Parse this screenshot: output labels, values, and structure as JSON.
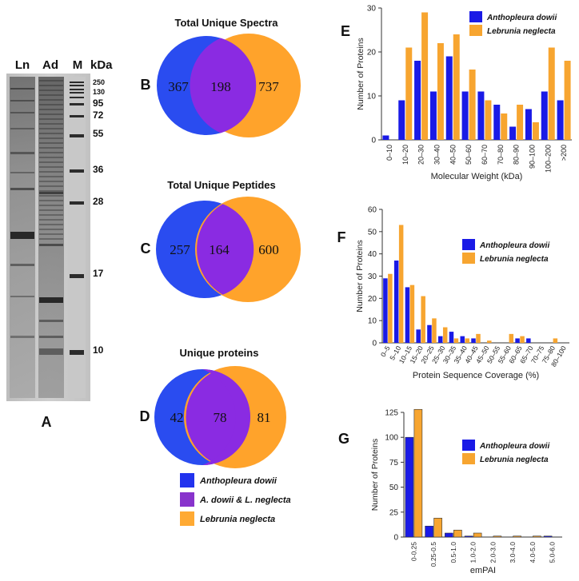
{
  "panels": {
    "A": "A",
    "B": "B",
    "C": "C",
    "D": "D",
    "E": "E",
    "F": "F",
    "G": "G"
  },
  "gel": {
    "lanes": [
      "Ln",
      "Ad",
      "M"
    ],
    "unit": "kDa",
    "markers": [
      "250",
      "130",
      "95",
      "72",
      "55",
      "36",
      "28",
      "17",
      "10"
    ]
  },
  "venns": [
    {
      "title": "Total Unique Spectra",
      "left": "367",
      "overlap": "198",
      "right": "737"
    },
    {
      "title": "Total Unique Peptides",
      "left": "257",
      "overlap": "164",
      "right": "600"
    },
    {
      "title": "Unique proteins",
      "left": "42",
      "overlap": "78",
      "right": "81"
    }
  ],
  "venn_legend": [
    {
      "label": "Anthopleura dowii",
      "color": "#2233ee"
    },
    {
      "label": "A. dowii & L. neglecta",
      "color": "#8833cc"
    },
    {
      "label": "Lebrunia neglecta",
      "color": "#ffaa33"
    }
  ],
  "colors": {
    "ad": "#1a1ae6",
    "ln": "#f7a530",
    "venn_blue": "#2a4cf0",
    "venn_orange": "#ffa32b",
    "venn_overlap": "#8a2be2"
  },
  "chart_data": [
    {
      "type": "bar",
      "ylabel": "Number of Proteins",
      "xlabel": "Molecular Weight (kDa)",
      "ylim": [
        0,
        30
      ],
      "yticks": [
        "0",
        "10",
        "20",
        "30"
      ],
      "categories": [
        "0–10",
        "10–20",
        "20–30",
        "30–40",
        "40–50",
        "50–60",
        "60–70",
        "70–80",
        "80–90",
        "90–100",
        "100–200",
        ">200"
      ],
      "series": [
        {
          "name": "Anthopleura dowii",
          "values": [
            1,
            9,
            18,
            11,
            19,
            11,
            11,
            8,
            3,
            7,
            11,
            9
          ]
        },
        {
          "name": "Lebrunia neglecta",
          "values": [
            0,
            21,
            29,
            22,
            24,
            16,
            9,
            6,
            8,
            4,
            21,
            18
          ]
        }
      ],
      "legend": "top-right"
    },
    {
      "type": "bar",
      "ylabel": "Number of Proteins",
      "xlabel": "Protein Sequence Coverage (%)",
      "ylim": [
        0,
        60
      ],
      "yticks": [
        "0",
        "10",
        "20",
        "30",
        "40",
        "50",
        "60"
      ],
      "categories": [
        "0–5",
        "5–10",
        "10–15",
        "15–20",
        "20–25",
        "25–30",
        "30–35",
        "35–40",
        "40–45",
        "45–50",
        "50–55",
        "55–60",
        "60–65",
        "65–70",
        "70–75",
        "75–80",
        "80–100"
      ],
      "series": [
        {
          "name": "Anthopleura dowii",
          "values": [
            29,
            37,
            25,
            6,
            8,
            3,
            5,
            3,
            2,
            0,
            0,
            0,
            2,
            2,
            0,
            0,
            0
          ]
        },
        {
          "name": "Lebrunia neglecta",
          "values": [
            31,
            53,
            26,
            21,
            11,
            7,
            2,
            2,
            4,
            1,
            0,
            4,
            3,
            0,
            0,
            2,
            0
          ]
        }
      ],
      "legend": "top-right"
    },
    {
      "type": "bar",
      "ylabel": "Number of Proteins",
      "xlabel": "emPAI",
      "ylim": [
        0,
        125
      ],
      "yticks": [
        "0",
        "25",
        "50",
        "75",
        "100",
        "125"
      ],
      "categories": [
        "0-0.25",
        "0.25-0.5",
        "0.5-1.0",
        "1.0-2.0",
        "2.0-3.0",
        "3.0-4.0",
        "4.0-5.0",
        "5.0-6.0"
      ],
      "series": [
        {
          "name": "Anthopleura dowii",
          "values": [
            100,
            11,
            4,
            1,
            0,
            0,
            0,
            1
          ]
        },
        {
          "name": "Lebrunia neglecta",
          "values": [
            128,
            19,
            7,
            4,
            1,
            1,
            1,
            0
          ]
        }
      ],
      "legend": "top-right"
    }
  ]
}
